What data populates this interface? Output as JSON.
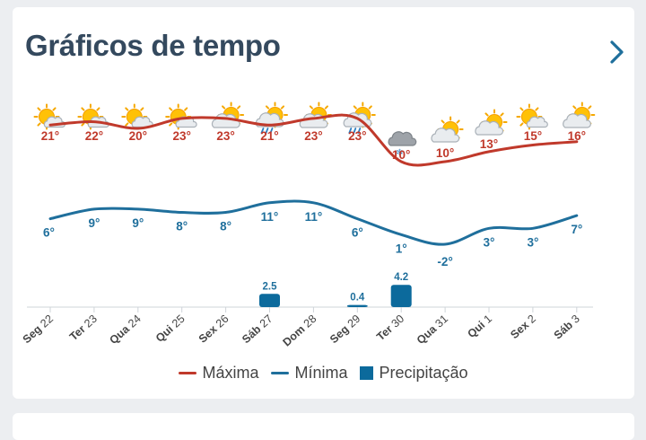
{
  "header": {
    "title": "Gráficos de tempo",
    "nav_icon": "chevron-right-icon"
  },
  "legend": {
    "max_label": "Máxima",
    "min_label": "Mínima",
    "precip_label": "Precipitação"
  },
  "colors": {
    "max_line": "#c0392b",
    "min_line": "#1f6f9c",
    "precip_bar": "#0c6a9c",
    "title": "#34495e"
  },
  "chart_data": {
    "type": "line",
    "x": [
      {
        "day": "Seg",
        "num": "22"
      },
      {
        "day": "Ter",
        "num": "23"
      },
      {
        "day": "Qua",
        "num": "24"
      },
      {
        "day": "Qui",
        "num": "25"
      },
      {
        "day": "Sex",
        "num": "26"
      },
      {
        "day": "Sáb",
        "num": "27"
      },
      {
        "day": "Dom",
        "num": "28"
      },
      {
        "day": "Seg",
        "num": "29"
      },
      {
        "day": "Ter",
        "num": "30"
      },
      {
        "day": "Qua",
        "num": "31"
      },
      {
        "day": "Qui",
        "num": "1"
      },
      {
        "day": "Sex",
        "num": "2"
      },
      {
        "day": "Sáb",
        "num": "3"
      }
    ],
    "series": [
      {
        "name": "Máxima",
        "values": [
          21,
          22,
          20,
          23,
          23,
          21,
          23,
          23,
          10,
          10,
          13,
          15,
          16
        ]
      },
      {
        "name": "Mínima",
        "values": [
          6,
          9,
          9,
          8,
          8,
          11,
          11,
          6,
          1,
          -2,
          3,
          3,
          7
        ]
      },
      {
        "name": "Precipitação",
        "type": "bar",
        "values": [
          0,
          0,
          0,
          0,
          0,
          2.5,
          0,
          0.4,
          4.2,
          0,
          0,
          0,
          0
        ]
      }
    ],
    "max_labels": [
      "21°",
      "22°",
      "20°",
      "23°",
      "23°",
      "21°",
      "23°",
      "23°",
      "10°",
      "10°",
      "13°",
      "15°",
      "16°"
    ],
    "min_labels": [
      "6°",
      "9°",
      "9°",
      "8°",
      "8°",
      "11°",
      "11°",
      "6°",
      "1°",
      "-2°",
      "3°",
      "3°",
      "7°"
    ],
    "precip_labels": [
      "",
      "",
      "",
      "",
      "",
      "2.5",
      "",
      "0.4",
      "4.2",
      "",
      "",
      "",
      ""
    ],
    "weather_icons": [
      "partly-sunny-icon",
      "partly-sunny-icon",
      "partly-sunny-icon",
      "partly-sunny-icon",
      "mostly-cloudy-icon",
      "rain-icon",
      "mostly-cloudy-icon",
      "rain-icon",
      "snow-cloud-icon",
      "mostly-cloudy-icon",
      "mostly-cloudy-icon",
      "partly-sunny-icon",
      "mostly-cloudy-icon"
    ],
    "grid": false
  }
}
